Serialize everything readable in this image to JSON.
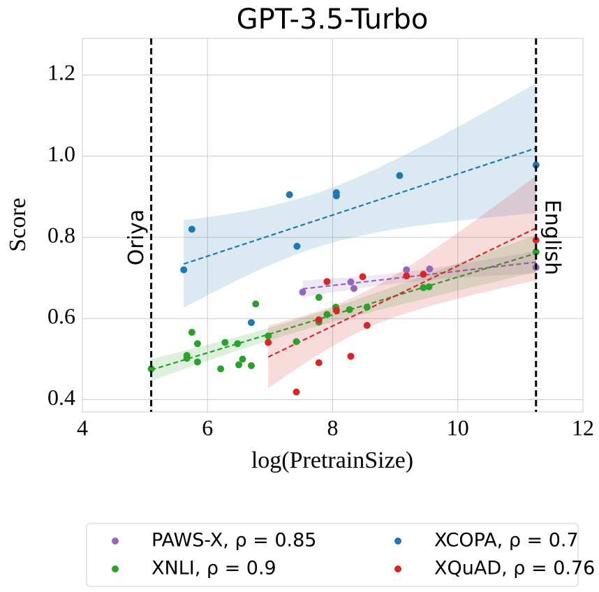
{
  "chart_data": {
    "type": "scatter",
    "title": "GPT-3.5-Turbo",
    "xlabel": "log(PretrainSize)",
    "ylabel": "Score",
    "xlim": [
      4,
      12
    ],
    "ylim": [
      0.37,
      1.29
    ],
    "xticks": [
      4,
      6,
      8,
      10,
      12
    ],
    "yticks": [
      0.4,
      0.6,
      0.8,
      {
        "value": 1,
        "label": "1.0"
      },
      1.2
    ],
    "grid": true,
    "vlines": [
      {
        "x": 5.1,
        "label": "Oriya"
      },
      {
        "x": 11.25,
        "label": "English"
      }
    ],
    "series": [
      {
        "name": "PAWS-X, ρ = 0.85",
        "color": "#9467bd",
        "x": [
          7.52,
          8.29,
          8.34,
          9.18,
          9.55,
          11.25
        ],
        "values": [
          0.665,
          0.69,
          0.674,
          0.72,
          0.722,
          0.726
        ]
      },
      {
        "name": "XCOPA, ρ = 0.7",
        "color": "#1f77b4",
        "x": [
          5.62,
          5.75,
          7.31,
          7.43,
          8.06,
          8.06,
          6.7,
          9.07,
          11.25
        ],
        "values": [
          0.72,
          0.82,
          0.905,
          0.778,
          0.91,
          0.902,
          0.59,
          0.952,
          0.978
        ]
      },
      {
        "name": "XNLI, ρ = 0.9",
        "color": "#2ca02c",
        "x": [
          5.1,
          5.75,
          5.84,
          5.67,
          5.67,
          5.84,
          6.28,
          6.48,
          6.21,
          6.5,
          6.56,
          6.7,
          6.77,
          6.97,
          7.42,
          7.78,
          7.78,
          7.91,
          8.05,
          8.27,
          8.55,
          9.45,
          9.54,
          11.25
        ],
        "values": [
          0.476,
          0.566,
          0.538,
          0.509,
          0.502,
          0.493,
          0.541,
          0.538,
          0.476,
          0.486,
          0.5,
          0.484,
          0.636,
          0.557,
          0.543,
          0.652,
          0.591,
          0.61,
          0.628,
          0.622,
          0.628,
          0.676,
          0.678,
          0.764
        ]
      },
      {
        "name": "XQuAD, ρ = 0.76",
        "color": "#d62728",
        "x": [
          7.42,
          7.78,
          7.78,
          7.91,
          8.06,
          8.29,
          8.48,
          8.55,
          6.97,
          9.18,
          9.45,
          11.25
        ],
        "values": [
          0.419,
          0.491,
          0.597,
          0.691,
          0.62,
          0.507,
          0.703,
          0.583,
          0.541,
          0.705,
          0.709,
          0.793
        ]
      }
    ]
  }
}
